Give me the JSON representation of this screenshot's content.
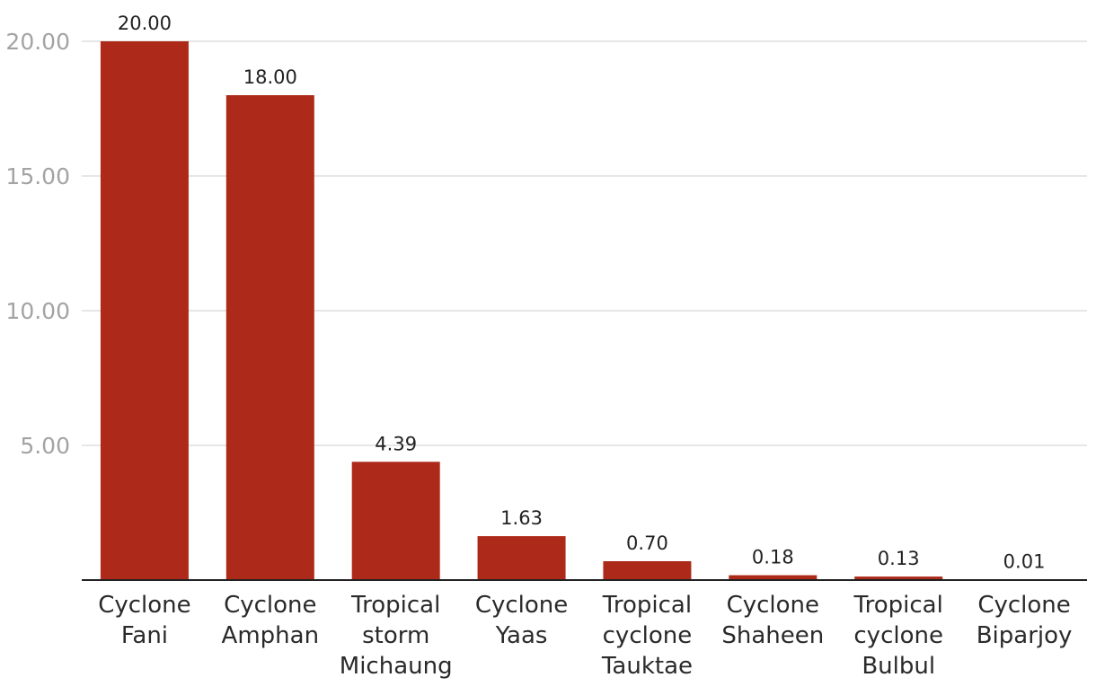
{
  "chart_data": {
    "type": "bar",
    "title": "",
    "xlabel": "",
    "ylabel": "",
    "categories": [
      [
        "Cyclone",
        "Fani"
      ],
      [
        "Cyclone",
        "Amphan"
      ],
      [
        "Tropical",
        "storm",
        "Michaung"
      ],
      [
        "Cyclone",
        "Yaas"
      ],
      [
        "Tropical",
        "cyclone",
        "Tauktae"
      ],
      [
        "Cyclone",
        "Shaheen"
      ],
      [
        "Tropical",
        "cyclone",
        "Bulbul"
      ],
      [
        "Cyclone",
        "Biparjoy"
      ]
    ],
    "values": [
      20.0,
      18.0,
      4.39,
      1.63,
      0.7,
      0.18,
      0.13,
      0.01
    ],
    "value_labels": [
      "20.00",
      "18.00",
      "4.39",
      "1.63",
      "0.70",
      "0.18",
      "0.13",
      "0.01"
    ],
    "yticks": [
      5,
      10,
      15,
      20
    ],
    "ytick_labels": [
      "5.00",
      "10.00",
      "15.00",
      "20.00"
    ],
    "ylim": [
      0,
      20
    ],
    "grid": true,
    "legend": "none",
    "colors": {
      "bar": "#ad2a1a",
      "grid": "#dddddd",
      "axis": "#222222",
      "tick_text": "#a3a3a3",
      "label_text": "#2a2a2a"
    }
  }
}
